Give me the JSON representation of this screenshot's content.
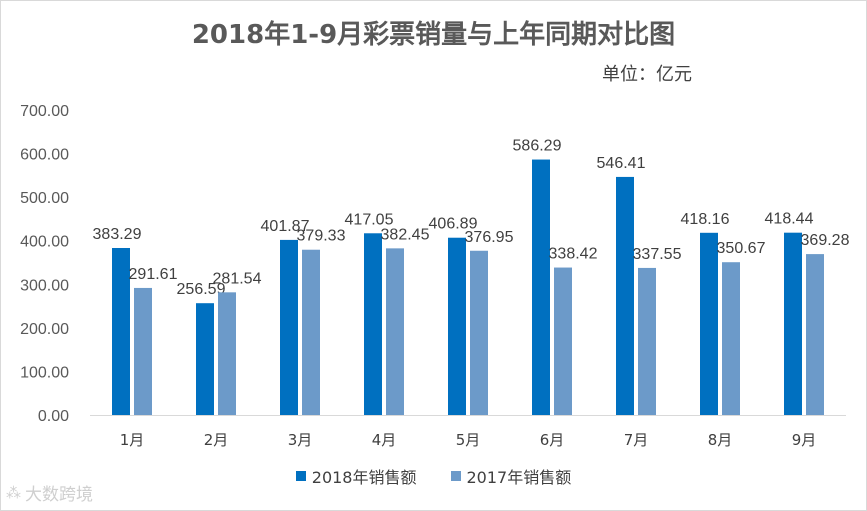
{
  "chart_data": {
    "type": "bar",
    "title": "2018年1-9月彩票销量与上年同期对比图",
    "unit": "单位：亿元",
    "categories": [
      "1月",
      "2月",
      "3月",
      "4月",
      "5月",
      "6月",
      "7月",
      "8月",
      "9月"
    ],
    "series": [
      {
        "name": "2018年销售额",
        "color": "#0070C0",
        "values": [
          383.29,
          256.59,
          401.87,
          417.05,
          406.89,
          586.29,
          546.41,
          418.16,
          418.44
        ]
      },
      {
        "name": "2017年销售额",
        "color": "#6C9AC9",
        "values": [
          291.61,
          281.54,
          379.33,
          382.45,
          376.95,
          338.42,
          337.55,
          350.67,
          369.28
        ]
      }
    ],
    "ylim": [
      0,
      700
    ],
    "yticks": [
      "0.00",
      "100.00",
      "200.00",
      "300.00",
      "400.00",
      "500.00",
      "600.00",
      "700.00"
    ],
    "legend_position": "bottom"
  },
  "watermark": "大数跨境"
}
